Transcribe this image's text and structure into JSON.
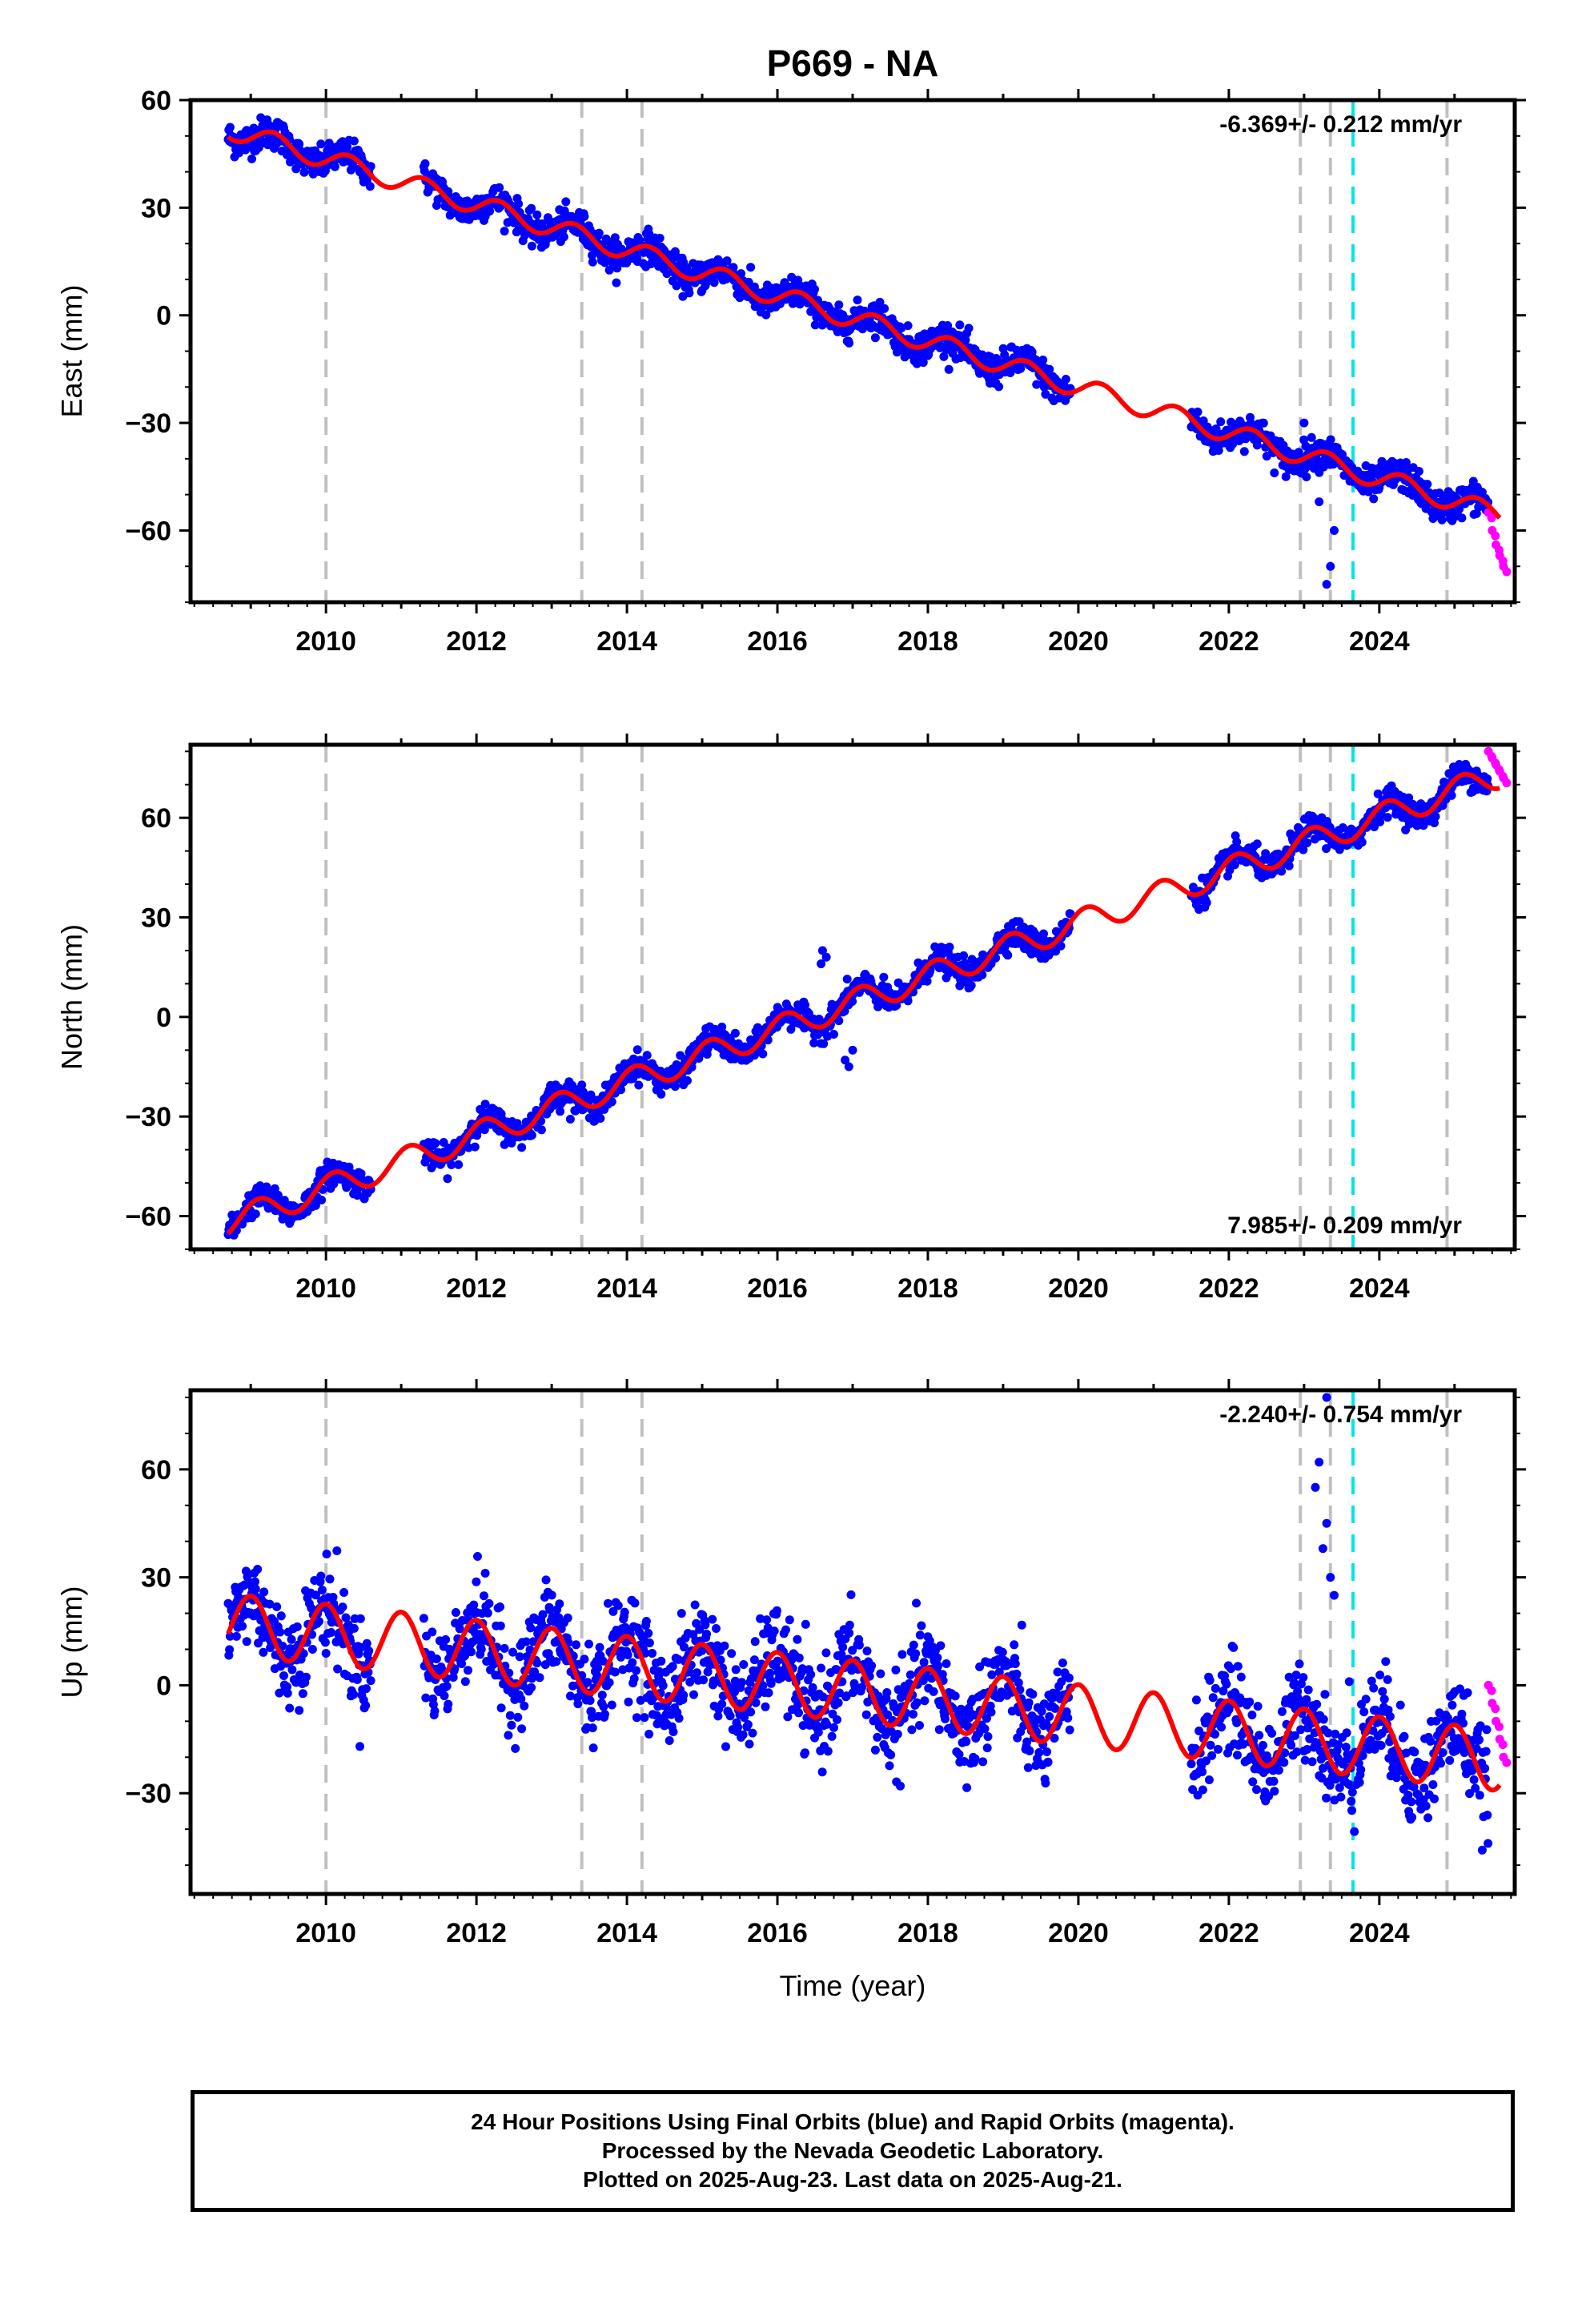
{
  "title": "P669 - NA",
  "colors": {
    "final_orbits": "#0000ff",
    "rapid_orbits": "#ff00ff",
    "model": "#ff0000",
    "event_lines": "#c0c0c0",
    "highlight_line": "#00e5e5"
  },
  "x_axis": {
    "label": "Time (year)",
    "tick_labels": [
      "2010",
      "2012",
      "2014",
      "2016",
      "2018",
      "2020",
      "2022",
      "2024"
    ],
    "range": [
      2008.2,
      2025.8
    ]
  },
  "footer": {
    "line1": "24 Hour Positions Using Final Orbits (blue) and Rapid Orbits (magenta).",
    "line2": "Processed by the Nevada Geodetic Laboratory.",
    "line3": "Plotted on 2025-Aug-23. Last data on 2025-Aug-21."
  },
  "chart_data": [
    {
      "type": "scatter",
      "ylabel": "East (mm)",
      "rate_text": "-6.369+/- 0.212 mm/yr",
      "rate_position": "top-right",
      "ylim": [
        -80,
        60
      ],
      "yticks": [
        60,
        30,
        0,
        -30,
        -60
      ],
      "ytick_labels": [
        "60",
        "30",
        "0",
        "−30",
        "−60"
      ],
      "event_lines": [
        2010.0,
        2013.4,
        2014.2,
        2022.95,
        2023.35,
        2024.9
      ],
      "highlight_line": 2023.65,
      "gaps": [
        [
          2010.6,
          2011.3
        ],
        [
          2019.9,
          2021.5
        ]
      ],
      "model": {
        "intercept_2008_7": 52,
        "rate": -6.369,
        "seasonal_amp": 2.8,
        "seasonal_phase": 0.3
      },
      "noise": 2.2,
      "outliers": [
        [
          2023.3,
          -75
        ],
        [
          2023.35,
          -70
        ],
        [
          2023.4,
          -60
        ],
        [
          2023.2,
          -52
        ],
        [
          2023.0,
          -30
        ]
      ],
      "rapid": {
        "start": 2025.45,
        "end": 2025.65,
        "values": [
          -55,
          -60,
          -64,
          -67,
          -70
        ]
      }
    },
    {
      "type": "scatter",
      "ylabel": "North (mm)",
      "rate_text": "7.985+/- 0.209 mm/yr",
      "rate_position": "bottom-right",
      "ylim": [
        -70,
        82
      ],
      "yticks": [
        60,
        30,
        0,
        -30,
        -60
      ],
      "ytick_labels": [
        "60",
        "30",
        "0",
        "−30",
        "−60"
      ],
      "event_lines": [
        2010.0,
        2013.4,
        2014.2,
        2022.95,
        2023.35,
        2024.9
      ],
      "highlight_line": 2023.65,
      "gaps": [
        [
          2010.6,
          2011.3
        ],
        [
          2019.9,
          2021.5
        ]
      ],
      "model": {
        "intercept_2008_7": -62,
        "rate": 7.985,
        "seasonal_amp": 4.0,
        "seasonal_phase": 0.1
      },
      "noise": 2.0,
      "outliers": [
        [
          2016.6,
          20
        ],
        [
          2016.65,
          18
        ],
        [
          2016.58,
          16
        ],
        [
          2016.95,
          -15
        ],
        [
          2017.0,
          -10
        ],
        [
          2016.9,
          -13
        ]
      ],
      "rapid": {
        "start": 2025.45,
        "end": 2025.65,
        "values": [
          80,
          78,
          76,
          74,
          72
        ]
      }
    },
    {
      "type": "scatter",
      "ylabel": "Up (mm)",
      "rate_text": "-2.240+/- 0.754 mm/yr",
      "rate_position": "top-right",
      "ylim": [
        -58,
        82
      ],
      "yticks": [
        60,
        30,
        0,
        -30
      ],
      "ytick_labels": [
        "60",
        "30",
        "0",
        "−30"
      ],
      "event_lines": [
        2010.0,
        2013.4,
        2014.2,
        2022.95,
        2023.35,
        2024.9
      ],
      "highlight_line": 2023.65,
      "gaps": [
        [
          2010.6,
          2011.3
        ],
        [
          2019.9,
          2021.5
        ]
      ],
      "model": {
        "intercept_2008_7": 17,
        "rate": -2.24,
        "seasonal_amp": 8.5,
        "seasonal_phase": 0.0
      },
      "noise": 6.5,
      "outliers": [
        [
          2023.2,
          62
        ],
        [
          2023.3,
          45
        ],
        [
          2023.25,
          38
        ],
        [
          2023.35,
          30
        ],
        [
          2023.15,
          55
        ],
        [
          2023.3,
          80
        ],
        [
          2023.4,
          25
        ],
        [
          2023.6,
          1
        ]
      ],
      "rapid": {
        "start": 2025.45,
        "end": 2025.65,
        "values": [
          0,
          -5,
          -10,
          -15,
          -20
        ]
      }
    }
  ]
}
